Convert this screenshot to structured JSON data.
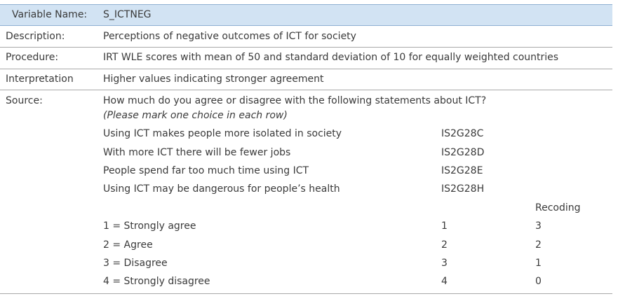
{
  "header": {
    "label": "Variable Name:",
    "value": "S_ICTNEG"
  },
  "rows": {
    "description": {
      "label": "Description:",
      "value": "Perceptions of negative outcomes of ICT for society"
    },
    "procedure": {
      "label": "Procedure:",
      "value": "IRT WLE scores with mean of 50 and standard deviation of 10 for equally weighted countries"
    },
    "interpretation": {
      "label": "Interpretation",
      "value": "Higher values indicating stronger agreement"
    },
    "source": {
      "label": "Source:",
      "question": "How much do you agree or disagree with the following statements about ICT?",
      "instruction": "(Please mark one choice in each row)",
      "items": [
        {
          "text": "Using ICT makes people more isolated in society",
          "code": "IS2G28C"
        },
        {
          "text": "With more ICT there will be fewer jobs",
          "code": "IS2G28D"
        },
        {
          "text": "People spend far too much time using ICT",
          "code": "IS2G28E"
        },
        {
          "text": "Using ICT may be dangerous for people’s health",
          "code": "IS2G28H"
        }
      ],
      "recoding_header": "Recoding",
      "recoding": [
        {
          "label": "1 = Strongly agree",
          "original": "1",
          "recoded": "3"
        },
        {
          "label": "2 = Agree",
          "original": "2",
          "recoded": "2"
        },
        {
          "label": "3 = Disagree",
          "original": "3",
          "recoded": "1"
        },
        {
          "label": "4 = Strongly disagree",
          "original": "4",
          "recoded": "0"
        }
      ]
    }
  },
  "colors": {
    "header_bg": "#d2e3f3",
    "header_border": "#8fb0d2",
    "rule": "#a8a8a8",
    "text": "#3a3a3a"
  }
}
